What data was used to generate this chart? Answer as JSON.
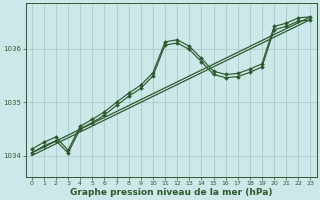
{
  "background_color": "#cce8e8",
  "plot_bg_color": "#cce8e8",
  "grid_color": "#aacccc",
  "line_color": "#2d5a2d",
  "xlabel": "Graphe pression niveau de la mer (hPa)",
  "xlabel_fontsize": 6.5,
  "xlim": [
    -0.5,
    23.5
  ],
  "ylim": [
    1033.6,
    1036.85
  ],
  "yticks": [
    1034,
    1035,
    1036
  ],
  "xticks": [
    0,
    1,
    2,
    3,
    4,
    5,
    6,
    7,
    8,
    9,
    10,
    11,
    12,
    13,
    14,
    15,
    16,
    17,
    18,
    19,
    20,
    21,
    22,
    23
  ],
  "straight_line1_x": [
    0,
    23
  ],
  "straight_line1_y": [
    1034.05,
    1036.6
  ],
  "straight_line2_x": [
    0,
    23
  ],
  "straight_line2_y": [
    1034.0,
    1036.55
  ],
  "line1_x": [
    0,
    1,
    2,
    3,
    4,
    5,
    6,
    7,
    8,
    9,
    10,
    11,
    12,
    13,
    14,
    15,
    16,
    17,
    18,
    19,
    20,
    21,
    22,
    23
  ],
  "line1_y": [
    1034.12,
    1034.25,
    1034.35,
    1034.1,
    1034.55,
    1034.68,
    1034.82,
    1035.0,
    1035.17,
    1035.32,
    1035.55,
    1036.13,
    1036.17,
    1036.05,
    1035.82,
    1035.58,
    1035.52,
    1035.54,
    1035.62,
    1035.72,
    1036.42,
    1036.48,
    1036.58,
    1036.6
  ],
  "line2_x": [
    0,
    1,
    2,
    3,
    4,
    5,
    6,
    7,
    8,
    9,
    10,
    11,
    12,
    13,
    14,
    15,
    16,
    17,
    18,
    19,
    20,
    21,
    22,
    23
  ],
  "line2_y": [
    1034.05,
    1034.18,
    1034.28,
    1034.05,
    1034.5,
    1034.62,
    1034.76,
    1034.94,
    1035.11,
    1035.26,
    1035.49,
    1036.07,
    1036.11,
    1035.99,
    1035.76,
    1035.52,
    1035.46,
    1035.48,
    1035.56,
    1035.66,
    1036.36,
    1036.42,
    1036.52,
    1036.54
  ]
}
